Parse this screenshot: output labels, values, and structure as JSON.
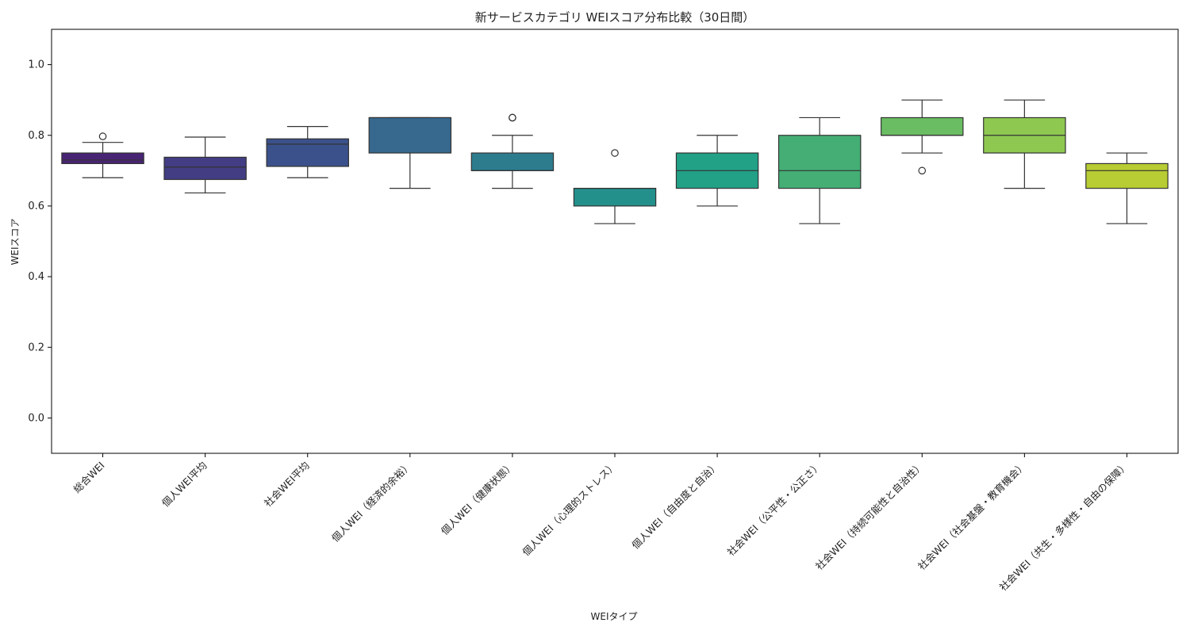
{
  "chart_data": {
    "type": "boxplot",
    "title": "新サービスカテゴリ WEIスコア分布比較（30日間）",
    "xlabel": "WEIタイプ",
    "ylabel": "WEIスコア",
    "ylim": [
      -0.1,
      1.1
    ],
    "yticks": [
      0.0,
      0.2,
      0.4,
      0.6,
      0.8,
      1.0
    ],
    "ytick_labels": [
      "0.0",
      "0.2",
      "0.4",
      "0.6",
      "0.8",
      "1.0"
    ],
    "grid": false,
    "legend": "none",
    "categories": [
      "総合WEI",
      "個人WEI平均",
      "社会WEI平均",
      "個人WEI（経済的余裕）",
      "個人WEI（健康状態）",
      "個人WEI（心理的ストレス）",
      "個人WEI（自由度と自治）",
      "社会WEI（公平性・公正さ）",
      "社会WEI（持続可能性と自治性）",
      "社会WEI（社会基盤・教育機会）",
      "社会WEI（共生・多様性・自由の保障）"
    ],
    "boxes": [
      {
        "whisker_low": 0.68,
        "q1": 0.72,
        "median": 0.73,
        "q3": 0.75,
        "whisker_high": 0.78,
        "outliers": [
          0.797
        ],
        "color": "#482475"
      },
      {
        "whisker_low": 0.637,
        "q1": 0.675,
        "median": 0.71,
        "q3": 0.738,
        "whisker_high": 0.795,
        "outliers": [],
        "color": "#433d84"
      },
      {
        "whisker_low": 0.68,
        "q1": 0.712,
        "median": 0.775,
        "q3": 0.79,
        "whisker_high": 0.825,
        "outliers": [],
        "color": "#3b518b"
      },
      {
        "whisker_low": 0.65,
        "q1": 0.75,
        "median": 0.85,
        "q3": 0.85,
        "whisker_high": 0.85,
        "outliers": [],
        "color": "#37688d"
      },
      {
        "whisker_low": 0.65,
        "q1": 0.7,
        "median": 0.7,
        "q3": 0.75,
        "whisker_high": 0.8,
        "outliers": [
          0.85,
          0.85
        ],
        "color": "#2c7c8e"
      },
      {
        "whisker_low": 0.55,
        "q1": 0.6,
        "median": 0.65,
        "q3": 0.65,
        "whisker_high": 0.65,
        "outliers": [
          0.75
        ],
        "color": "#23908c"
      },
      {
        "whisker_low": 0.6,
        "q1": 0.65,
        "median": 0.7,
        "q3": 0.75,
        "whisker_high": 0.8,
        "outliers": [],
        "color": "#22a187"
      },
      {
        "whisker_low": 0.55,
        "q1": 0.65,
        "median": 0.7,
        "q3": 0.8,
        "whisker_high": 0.85,
        "outliers": [],
        "color": "#44ae75"
      },
      {
        "whisker_low": 0.75,
        "q1": 0.8,
        "median": 0.8,
        "q3": 0.85,
        "whisker_high": 0.9,
        "outliers": [
          0.7
        ],
        "color": "#6abd62"
      },
      {
        "whisker_low": 0.65,
        "q1": 0.75,
        "median": 0.8,
        "q3": 0.85,
        "whisker_high": 0.9,
        "outliers": [],
        "color": "#8ec851"
      },
      {
        "whisker_low": 0.55,
        "q1": 0.65,
        "median": 0.7,
        "q3": 0.72,
        "whisker_high": 0.75,
        "outliers": [],
        "color": "#b8cc33"
      }
    ]
  }
}
